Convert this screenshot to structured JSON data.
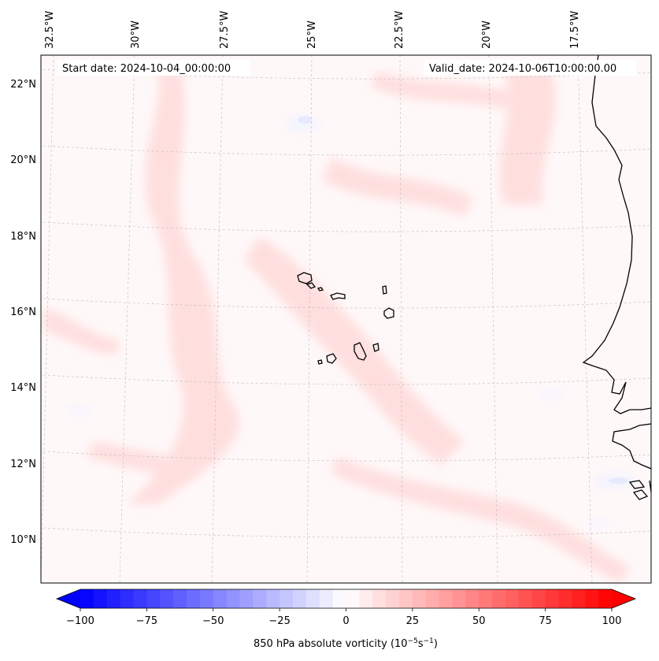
{
  "map": {
    "start_date": "Start date: 2024-10-04_00:00:00",
    "valid_date": "Valid_date: 2024-10-06T10:00:00.00",
    "lon_labels": [
      "32.5°W",
      "30°W",
      "27.5°W",
      "25°W",
      "22.5°W",
      "20°W",
      "17.5°W"
    ],
    "lat_labels": [
      "22°N",
      "20°N",
      "18°N",
      "16°N",
      "14°N",
      "12°N",
      "10°N"
    ]
  },
  "colorbar": {
    "ticks": [
      "−100",
      "−75",
      "−50",
      "−25",
      "0",
      "25",
      "50",
      "75",
      "100"
    ],
    "tick_values": [
      -100,
      -75,
      -50,
      -25,
      0,
      25,
      50,
      75,
      100
    ],
    "vmin": -100,
    "vmax": 100,
    "label": "850 hPa absolute vorticity (10",
    "label_exp1": "−5",
    "label_mid": "s",
    "label_exp2": "−1",
    "label_end": ")",
    "color_min": "#0000ff",
    "color_mid": "#ffffff",
    "color_max": "#ff0000"
  }
}
